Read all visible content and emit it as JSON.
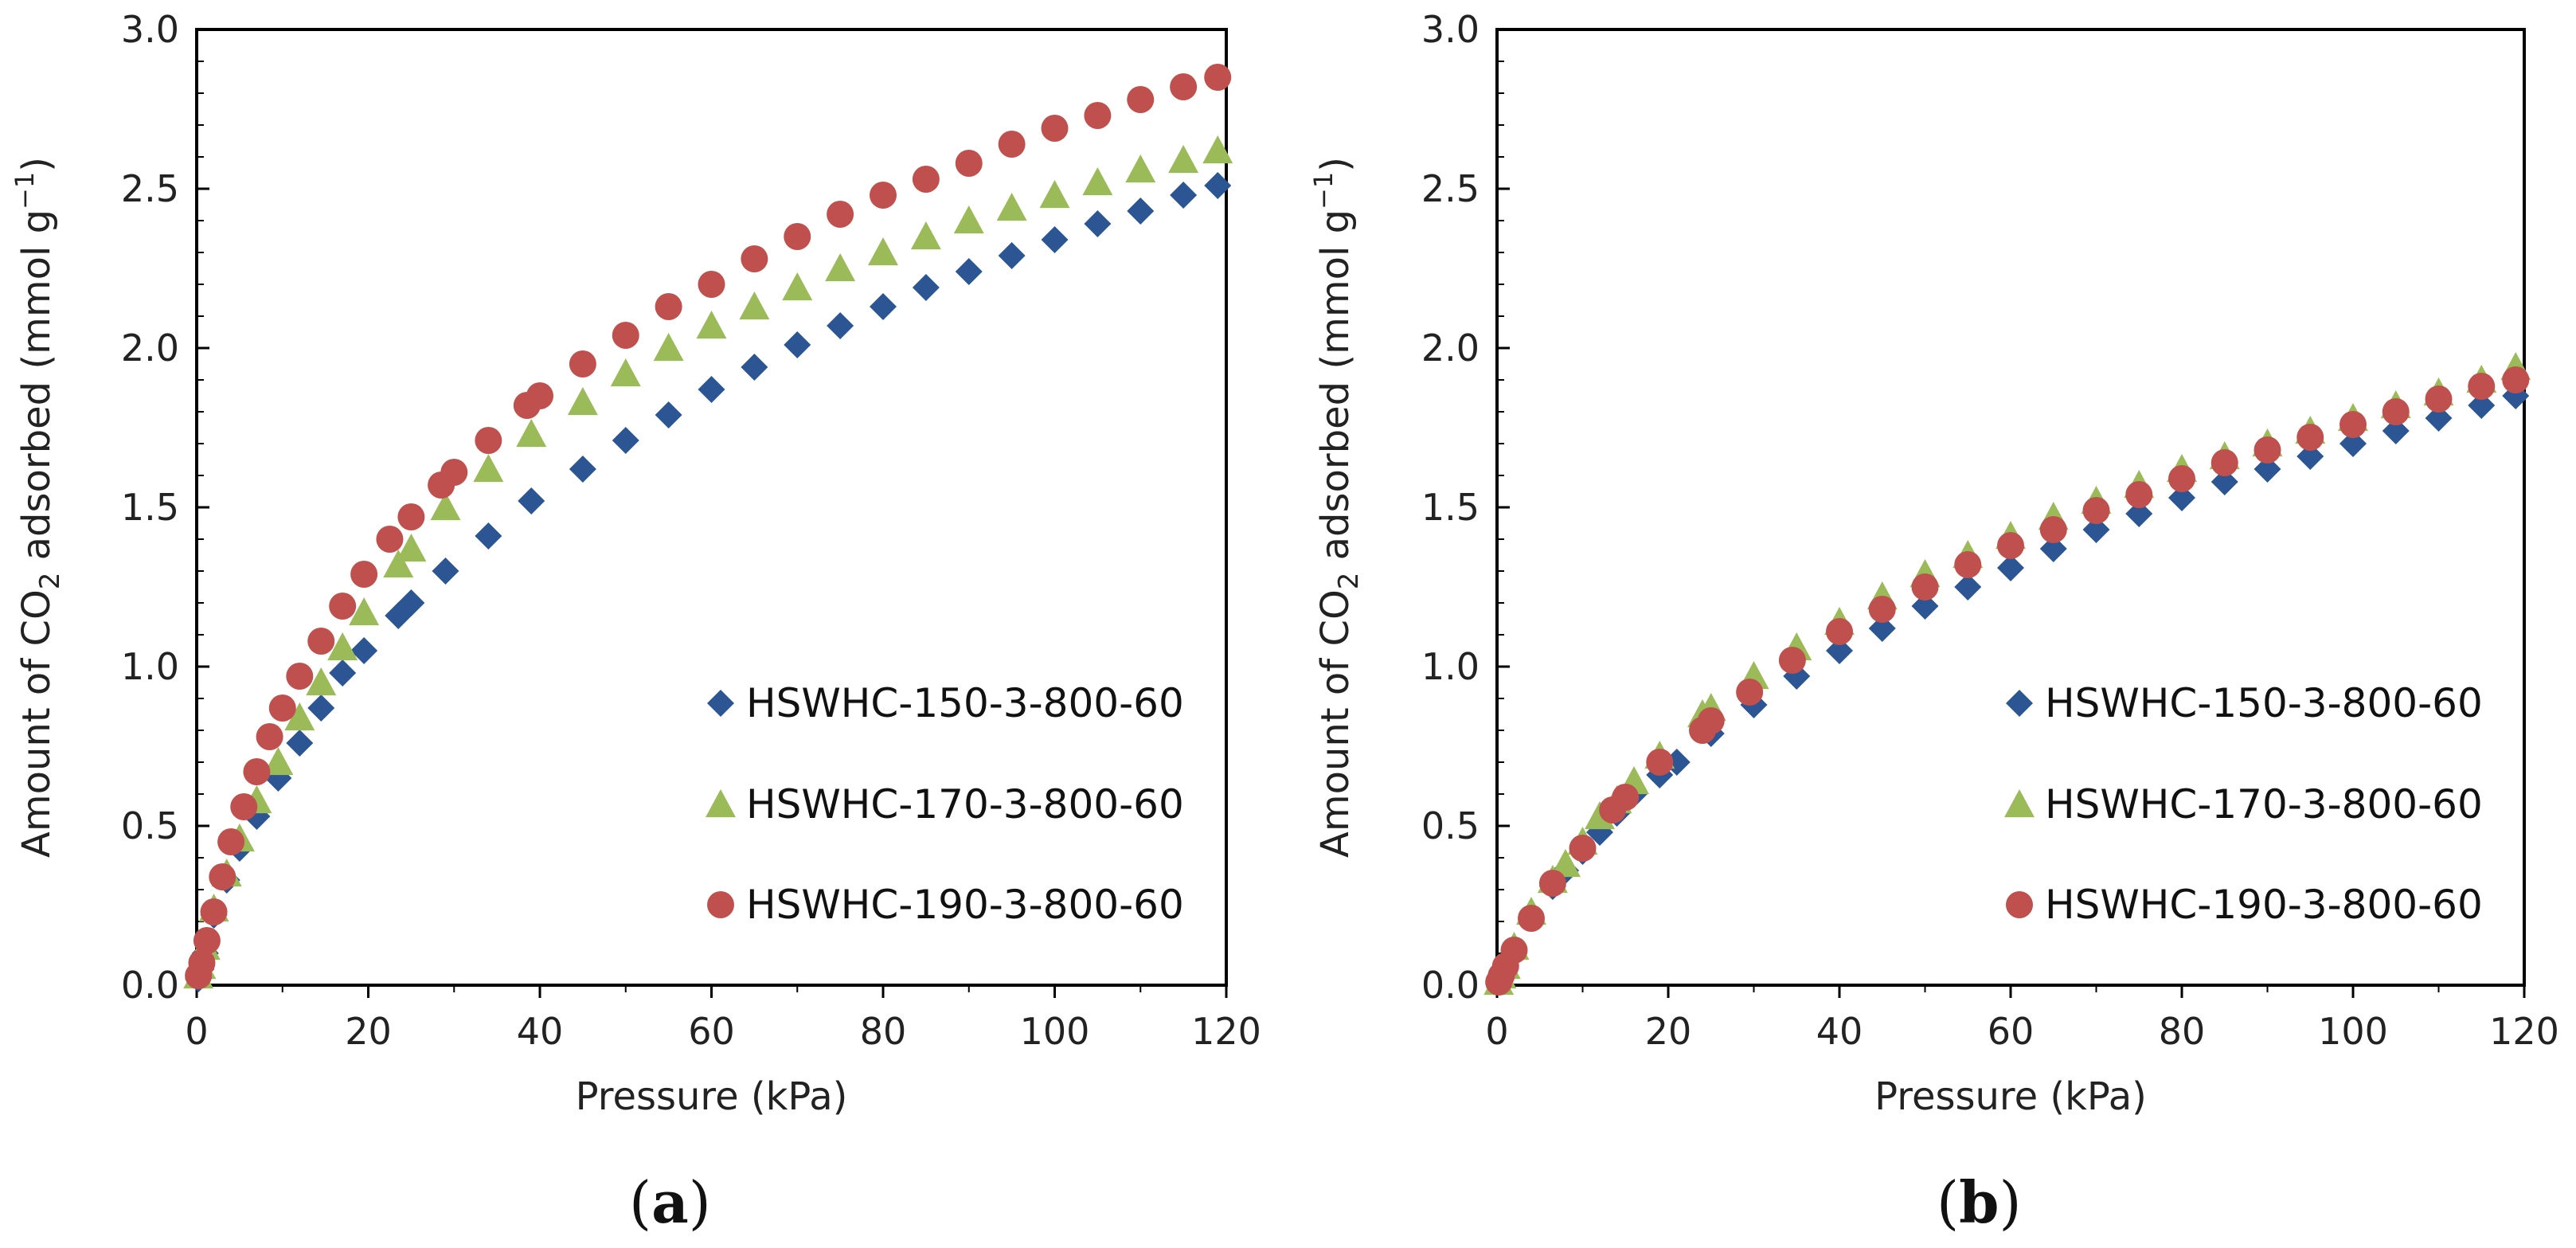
{
  "colors": {
    "HSWHC-150-3-800-60": "#2b5693",
    "HSWHC-170-3-800-60": "#9bbb59",
    "HSWHC-190-3-800-60": "#c0504d"
  },
  "chart_data": [
    {
      "type": "scatter",
      "panel_label": "a",
      "xlabel": "Pressure (kPa)",
      "ylabel_main": "Amount of CO",
      "ylabel_sub": "2",
      "ylabel_tail": " adsorbed (mmol g",
      "ylabel_sup": "−1",
      "ylabel_close": ")",
      "xlim": [
        0,
        120
      ],
      "ylim": [
        0,
        3.0
      ],
      "xticks": [
        "0",
        "20",
        "40",
        "60",
        "80",
        "100",
        "120"
      ],
      "yticks": [
        "0.0",
        "0.5",
        "1.0",
        "1.5",
        "2.0",
        "2.5",
        "3.0"
      ],
      "grid": false,
      "legend_position": "lower-right",
      "series": [
        {
          "name": "HSWHC-150-3-800-60",
          "marker": "diamond",
          "points": [
            [
              0.2,
              0.02
            ],
            [
              0.5,
              0.05
            ],
            [
              1,
              0.1
            ],
            [
              2,
              0.22
            ],
            [
              3.5,
              0.33
            ],
            [
              5,
              0.43
            ],
            [
              7,
              0.53
            ],
            [
              9.5,
              0.65
            ],
            [
              12,
              0.76
            ],
            [
              14.5,
              0.87
            ],
            [
              17,
              0.98
            ],
            [
              19.5,
              1.05
            ],
            [
              23.5,
              1.16
            ],
            [
              25,
              1.2
            ],
            [
              29,
              1.3
            ],
            [
              34,
              1.41
            ],
            [
              39,
              1.52
            ],
            [
              45,
              1.62
            ],
            [
              50,
              1.71
            ],
            [
              55,
              1.79
            ],
            [
              60,
              1.87
            ],
            [
              65,
              1.94
            ],
            [
              70,
              2.01
            ],
            [
              75,
              2.07
            ],
            [
              80,
              2.13
            ],
            [
              85,
              2.19
            ],
            [
              90,
              2.24
            ],
            [
              95,
              2.29
            ],
            [
              100,
              2.34
            ],
            [
              105,
              2.39
            ],
            [
              110,
              2.43
            ],
            [
              115,
              2.48
            ],
            [
              119,
              2.51
            ]
          ]
        },
        {
          "name": "HSWHC-170-3-800-60",
          "marker": "triangle",
          "points": [
            [
              0.2,
              0.03
            ],
            [
              0.5,
              0.06
            ],
            [
              1,
              0.12
            ],
            [
              2,
              0.24
            ],
            [
              3.5,
              0.35
            ],
            [
              5,
              0.46
            ],
            [
              7,
              0.58
            ],
            [
              9.5,
              0.7
            ],
            [
              12,
              0.84
            ],
            [
              14.5,
              0.95
            ],
            [
              17,
              1.06
            ],
            [
              19.5,
              1.17
            ],
            [
              23.5,
              1.32
            ],
            [
              25,
              1.37
            ],
            [
              29,
              1.5
            ],
            [
              34,
              1.62
            ],
            [
              39,
              1.73
            ],
            [
              45,
              1.83
            ],
            [
              50,
              1.92
            ],
            [
              55,
              2.0
            ],
            [
              60,
              2.07
            ],
            [
              65,
              2.13
            ],
            [
              70,
              2.19
            ],
            [
              75,
              2.25
            ],
            [
              80,
              2.3
            ],
            [
              85,
              2.35
            ],
            [
              90,
              2.4
            ],
            [
              95,
              2.44
            ],
            [
              100,
              2.48
            ],
            [
              105,
              2.52
            ],
            [
              110,
              2.56
            ],
            [
              115,
              2.59
            ],
            [
              119,
              2.62
            ]
          ]
        },
        {
          "name": "HSWHC-190-3-800-60",
          "marker": "circle",
          "points": [
            [
              0.2,
              0.03
            ],
            [
              0.6,
              0.07
            ],
            [
              1.2,
              0.14
            ],
            [
              2,
              0.23
            ],
            [
              3,
              0.34
            ],
            [
              4,
              0.45
            ],
            [
              5.5,
              0.56
            ],
            [
              7,
              0.67
            ],
            [
              8.5,
              0.78
            ],
            [
              10,
              0.87
            ],
            [
              12,
              0.97
            ],
            [
              14.5,
              1.08
            ],
            [
              17,
              1.19
            ],
            [
              19.5,
              1.29
            ],
            [
              22.5,
              1.4
            ],
            [
              25,
              1.47
            ],
            [
              28.5,
              1.57
            ],
            [
              30,
              1.61
            ],
            [
              34,
              1.71
            ],
            [
              38.5,
              1.82
            ],
            [
              40,
              1.85
            ],
            [
              45,
              1.95
            ],
            [
              50,
              2.04
            ],
            [
              55,
              2.13
            ],
            [
              60,
              2.2
            ],
            [
              65,
              2.28
            ],
            [
              70,
              2.35
            ],
            [
              75,
              2.42
            ],
            [
              80,
              2.48
            ],
            [
              85,
              2.53
            ],
            [
              90,
              2.58
            ],
            [
              95,
              2.64
            ],
            [
              100,
              2.69
            ],
            [
              105,
              2.73
            ],
            [
              110,
              2.78
            ],
            [
              115,
              2.82
            ],
            [
              119,
              2.85
            ]
          ]
        }
      ]
    },
    {
      "type": "scatter",
      "panel_label": "b",
      "xlabel": "Pressure (kPa)",
      "ylabel_main": "Amount of CO",
      "ylabel_sub": "2",
      "ylabel_tail": " adsorbed (mmol g",
      "ylabel_sup": "−1",
      "ylabel_close": ")",
      "xlim": [
        0,
        120
      ],
      "ylim": [
        0,
        3.0
      ],
      "xticks": [
        "0",
        "20",
        "40",
        "60",
        "80",
        "100",
        "120"
      ],
      "yticks": [
        "0.0",
        "0.5",
        "1.0",
        "1.5",
        "2.0",
        "2.5",
        "3.0"
      ],
      "grid": false,
      "legend_position": "lower-right",
      "series": [
        {
          "name": "HSWHC-150-3-800-60",
          "marker": "diamond",
          "points": [
            [
              0.2,
              0.01
            ],
            [
              0.5,
              0.03
            ],
            [
              1,
              0.06
            ],
            [
              2,
              0.11
            ],
            [
              4,
              0.21
            ],
            [
              6.5,
              0.31
            ],
            [
              8,
              0.36
            ],
            [
              10,
              0.42
            ],
            [
              12,
              0.48
            ],
            [
              14,
              0.54
            ],
            [
              16,
              0.6
            ],
            [
              19,
              0.66
            ],
            [
              21,
              0.7
            ],
            [
              25,
              0.79
            ],
            [
              30,
              0.88
            ],
            [
              35,
              0.97
            ],
            [
              40,
              1.05
            ],
            [
              45,
              1.12
            ],
            [
              50,
              1.19
            ],
            [
              55,
              1.25
            ],
            [
              60,
              1.31
            ],
            [
              65,
              1.37
            ],
            [
              70,
              1.43
            ],
            [
              75,
              1.48
            ],
            [
              80,
              1.53
            ],
            [
              85,
              1.58
            ],
            [
              90,
              1.62
            ],
            [
              95,
              1.66
            ],
            [
              100,
              1.7
            ],
            [
              105,
              1.74
            ],
            [
              110,
              1.78
            ],
            [
              115,
              1.82
            ],
            [
              119,
              1.85
            ]
          ]
        },
        {
          "name": "HSWHC-170-3-800-60",
          "marker": "triangle",
          "points": [
            [
              0.2,
              0.01
            ],
            [
              0.5,
              0.03
            ],
            [
              1,
              0.06
            ],
            [
              2,
              0.12
            ],
            [
              4,
              0.23
            ],
            [
              6.5,
              0.33
            ],
            [
              8,
              0.38
            ],
            [
              10,
              0.45
            ],
            [
              12,
              0.53
            ],
            [
              14,
              0.58
            ],
            [
              16,
              0.64
            ],
            [
              19,
              0.72
            ],
            [
              24,
              0.85
            ],
            [
              25,
              0.87
            ],
            [
              30,
              0.97
            ],
            [
              35,
              1.06
            ],
            [
              40,
              1.14
            ],
            [
              45,
              1.22
            ],
            [
              50,
              1.29
            ],
            [
              55,
              1.35
            ],
            [
              60,
              1.41
            ],
            [
              65,
              1.47
            ],
            [
              70,
              1.52
            ],
            [
              75,
              1.57
            ],
            [
              80,
              1.62
            ],
            [
              85,
              1.66
            ],
            [
              90,
              1.7
            ],
            [
              95,
              1.74
            ],
            [
              100,
              1.78
            ],
            [
              105,
              1.82
            ],
            [
              110,
              1.86
            ],
            [
              115,
              1.9
            ],
            [
              119,
              1.94
            ]
          ]
        },
        {
          "name": "HSWHC-190-3-800-60",
          "marker": "circle",
          "points": [
            [
              0.2,
              0.01
            ],
            [
              0.5,
              0.03
            ],
            [
              1,
              0.06
            ],
            [
              2,
              0.11
            ],
            [
              4,
              0.21
            ],
            [
              6.5,
              0.32
            ],
            [
              10,
              0.43
            ],
            [
              13.5,
              0.55
            ],
            [
              15,
              0.59
            ],
            [
              19,
              0.7
            ],
            [
              24,
              0.8
            ],
            [
              25,
              0.83
            ],
            [
              29.5,
              0.92
            ],
            [
              34.5,
              1.02
            ],
            [
              40,
              1.11
            ],
            [
              45,
              1.18
            ],
            [
              50,
              1.25
            ],
            [
              55,
              1.32
            ],
            [
              60,
              1.38
            ],
            [
              65,
              1.43
            ],
            [
              70,
              1.49
            ],
            [
              75,
              1.54
            ],
            [
              80,
              1.59
            ],
            [
              85,
              1.64
            ],
            [
              90,
              1.68
            ],
            [
              95,
              1.72
            ],
            [
              100,
              1.76
            ],
            [
              105,
              1.8
            ],
            [
              110,
              1.84
            ],
            [
              115,
              1.88
            ],
            [
              119,
              1.9
            ]
          ]
        }
      ]
    }
  ]
}
